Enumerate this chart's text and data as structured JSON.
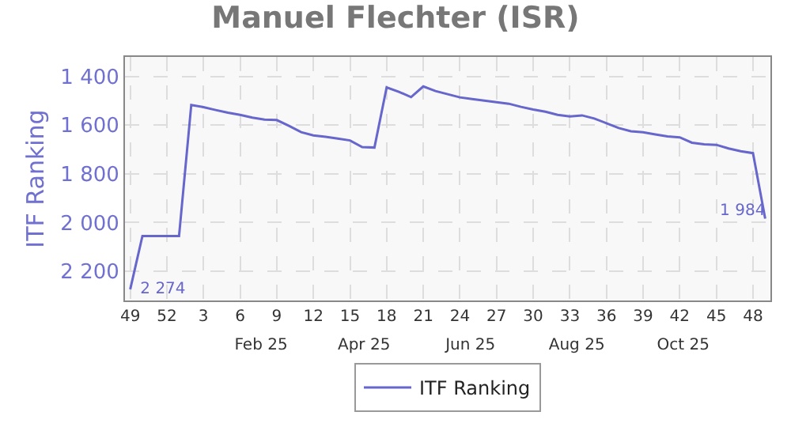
{
  "chart_data": {
    "type": "line",
    "title": "Manuel Flechter (ISR)",
    "ylabel": "ITF Ranking",
    "x": [
      "2024-12-02",
      "2024-12-09",
      "2024-12-16",
      "2024-12-23",
      "2024-12-30",
      "2025-01-06",
      "2025-01-13",
      "2025-01-20",
      "2025-01-27",
      "2025-02-03",
      "2025-02-10",
      "2025-02-17",
      "2025-02-24",
      "2025-03-03",
      "2025-03-10",
      "2025-03-17",
      "2025-03-24",
      "2025-03-31",
      "2025-04-07",
      "2025-04-14",
      "2025-04-21",
      "2025-04-28",
      "2025-05-05",
      "2025-05-12",
      "2025-05-19",
      "2025-05-26",
      "2025-06-02",
      "2025-06-09",
      "2025-06-16",
      "2025-06-23",
      "2025-06-30",
      "2025-07-07",
      "2025-07-14",
      "2025-07-21",
      "2025-07-28",
      "2025-08-04",
      "2025-08-11",
      "2025-08-18",
      "2025-08-25",
      "2025-09-01",
      "2025-09-08",
      "2025-09-15",
      "2025-09-22",
      "2025-09-29",
      "2025-10-06",
      "2025-10-13",
      "2025-10-20",
      "2025-10-27",
      "2025-11-03",
      "2025-11-10",
      "2025-11-17",
      "2025-11-24",
      "2025-12-01"
    ],
    "series": [
      {
        "name": "ITF Ranking",
        "color": "#6666cc",
        "values": [
          2274,
          2055,
          2055,
          2055,
          2055,
          1517,
          1526,
          1538,
          1549,
          1558,
          1569,
          1577,
          1579,
          1603,
          1629,
          1642,
          1648,
          1655,
          1663,
          1690,
          1692,
          1445,
          1463,
          1485,
          1441,
          1460,
          1473,
          1486,
          1493,
          1499,
          1506,
          1512,
          1525,
          1536,
          1545,
          1558,
          1564,
          1560,
          1573,
          1592,
          1612,
          1625,
          1629,
          1638,
          1646,
          1650,
          1672,
          1679,
          1681,
          1696,
          1707,
          1715,
          1984
        ],
        "value_labels": [
          "2 274",
          null,
          null,
          null,
          null,
          null,
          null,
          null,
          null,
          null,
          null,
          null,
          null,
          null,
          null,
          null,
          null,
          null,
          null,
          null,
          null,
          null,
          null,
          null,
          null,
          null,
          null,
          null,
          null,
          null,
          null,
          null,
          null,
          null,
          null,
          null,
          null,
          null,
          null,
          null,
          null,
          null,
          null,
          null,
          null,
          null,
          null,
          null,
          null,
          null,
          null,
          null,
          "1 984"
        ]
      }
    ],
    "xlim": [
      "2024-11-29",
      "2025-12-04"
    ],
    "xticks": [
      {
        "value": "2024-12-02",
        "label": "49"
      },
      {
        "value": "2024-12-23",
        "label": "52"
      },
      {
        "value": "2025-01-13",
        "label": "3"
      },
      {
        "value": "2025-02-03",
        "label": "6"
      },
      {
        "value": "2025-02-24",
        "label": "9"
      },
      {
        "value": "2025-03-17",
        "label": "12"
      },
      {
        "value": "2025-04-07",
        "label": "15"
      },
      {
        "value": "2025-04-28",
        "label": "18"
      },
      {
        "value": "2025-05-19",
        "label": "21"
      },
      {
        "value": "2025-06-09",
        "label": "24"
      },
      {
        "value": "2025-06-30",
        "label": "27"
      },
      {
        "value": "2025-07-21",
        "label": "30"
      },
      {
        "value": "2025-08-11",
        "label": "33"
      },
      {
        "value": "2025-09-01",
        "label": "36"
      },
      {
        "value": "2025-09-22",
        "label": "39"
      },
      {
        "value": "2025-10-13",
        "label": "42"
      },
      {
        "value": "2025-11-03",
        "label": "45"
      },
      {
        "value": "2025-11-24",
        "label": "48"
      }
    ],
    "x2lim": [
      "2024-11-29",
      "2025-12-04"
    ],
    "x2ticks": [
      {
        "value": "2025-02-15",
        "label": "Feb 25"
      },
      {
        "value": "2025-04-15",
        "label": "Apr 25"
      },
      {
        "value": "2025-06-15",
        "label": "Jun 25"
      },
      {
        "value": "2025-08-15",
        "label": "Aug 25"
      },
      {
        "value": "2025-10-15",
        "label": "Oct 25"
      }
    ],
    "ylim": [
      2320,
      1320
    ],
    "yticks": [
      {
        "value": 1400,
        "label": "1 400"
      },
      {
        "value": 1600,
        "label": "1 600"
      },
      {
        "value": 1800,
        "label": "1 800"
      },
      {
        "value": 2000,
        "label": "2 000"
      },
      {
        "value": 2200,
        "label": "2 200"
      }
    ],
    "grid": true,
    "legend": "bottom",
    "marker": "none",
    "line_style": "solid"
  }
}
